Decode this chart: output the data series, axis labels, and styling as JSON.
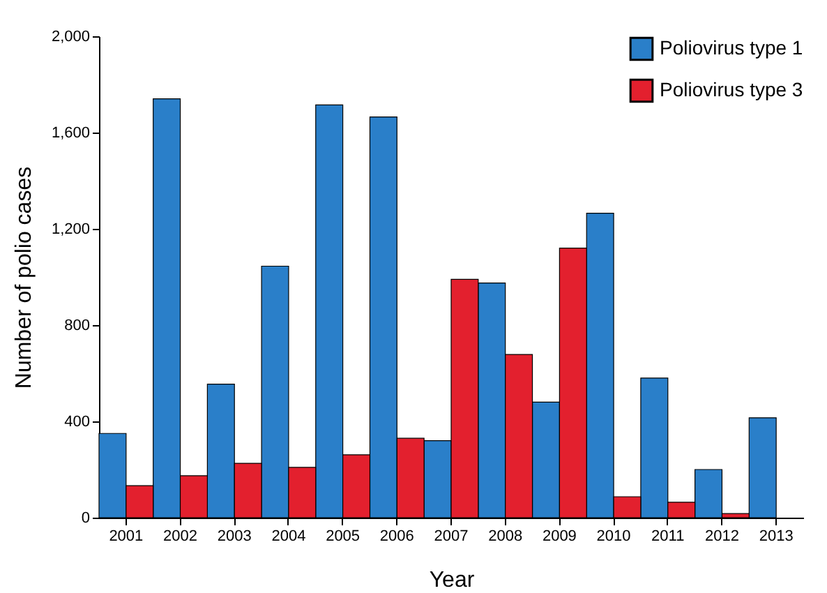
{
  "chart_data": {
    "type": "bar",
    "xlabel": "Year",
    "ylabel": "Number of polio cases",
    "categories": [
      "2001",
      "2002",
      "2003",
      "2004",
      "2005",
      "2006",
      "2007",
      "2008",
      "2009",
      "2010",
      "2011",
      "2012",
      "2013"
    ],
    "series": [
      {
        "name": "Poliovirus type 1",
        "color": "#2a7fc9",
        "values": [
          350,
          1740,
          555,
          1045,
          1715,
          1665,
          320,
          975,
          480,
          1265,
          580,
          200,
          415
        ]
      },
      {
        "name": "Poliovirus type 3",
        "color": "#e3202e",
        "values": [
          133,
          174,
          226,
          209,
          261,
          330,
          990,
          678,
          1120,
          87,
          64,
          17,
          null
        ]
      }
    ],
    "ylim": [
      0,
      2000
    ],
    "yticks": [
      0,
      400,
      800,
      {
        "value": 1200,
        "label": "1,200"
      },
      {
        "value": 1600,
        "label": "1,600"
      },
      {
        "value": 2000,
        "label": "2,000"
      }
    ],
    "grid": false,
    "legend": "top right"
  }
}
